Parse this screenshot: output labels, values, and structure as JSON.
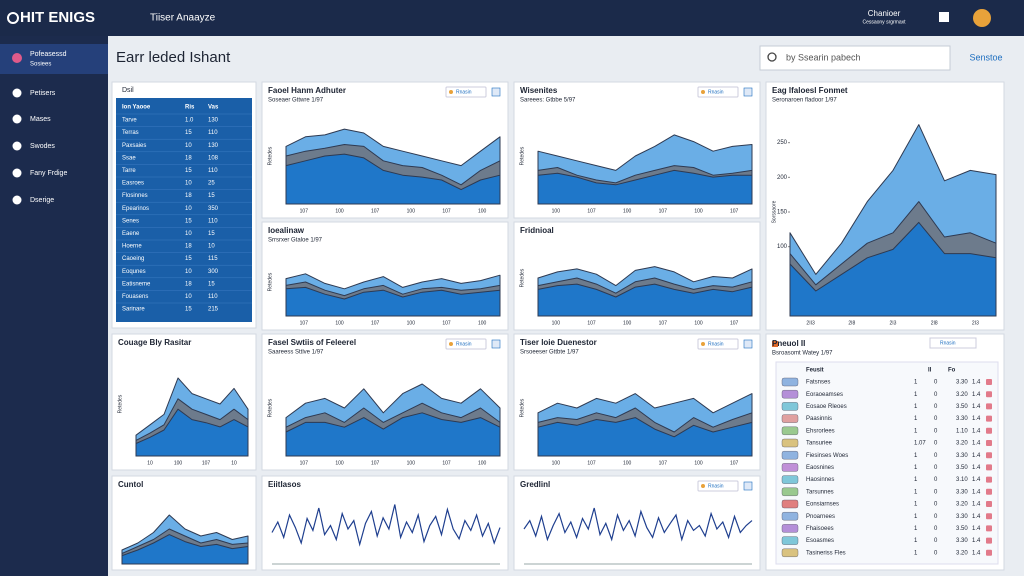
{
  "topbar": {
    "logo": "HIT ENIGS",
    "title": "Tiiser Anaayze",
    "user": "Chanioer",
    "user_sub": "Cessaony srgrmaxt"
  },
  "sidebar": {
    "active": "Pofeasessd",
    "active_sub": "Sosiees",
    "items": [
      "Petisers",
      "Mases",
      "Swodes",
      "Fany Frdige",
      "Dserige"
    ]
  },
  "header": {
    "title": "Earr leded Ishant",
    "search": "by Ssearin pabech",
    "button": "Senstoe"
  },
  "table": {
    "title": "Dsil",
    "columns": [
      "Ion Yaooe",
      "Ris",
      "Vas"
    ],
    "rows": [
      [
        "Tarve",
        "1.0",
        "130"
      ],
      [
        "Terras",
        "15",
        "110"
      ],
      [
        "Paxsaies",
        "10",
        "130"
      ],
      [
        "Ssae",
        "18",
        "108"
      ],
      [
        "Tarre",
        "15",
        "110"
      ],
      [
        "Easroes",
        "10",
        "25"
      ],
      [
        "Flosinnes",
        "18",
        "15"
      ],
      [
        "Epearinos",
        "10",
        "350"
      ],
      [
        "Senes",
        "15",
        "110"
      ],
      [
        "Eaene",
        "10",
        "15"
      ],
      [
        "Hoerne",
        "18",
        "10"
      ],
      [
        "Caoeing",
        "15",
        "115"
      ],
      [
        "Eoqunes",
        "10",
        "300"
      ],
      [
        "Eatisneme",
        "18",
        "15"
      ],
      [
        "Fouasens",
        "10",
        "110"
      ],
      [
        "Sarinare",
        "15",
        "215"
      ]
    ]
  },
  "charts": [
    {
      "type": "area",
      "title": "Faoel Hanm Adhuter",
      "subtitle": "Soseaer Gttwre 1/97",
      "badge": "Rnasin",
      "ylabel": "Retedes",
      "ylim": [
        0,
        100
      ],
      "xlabels": [
        "107",
        "100",
        "107",
        "100",
        "107",
        "100"
      ],
      "series": [
        {
          "color": "#6aaee6",
          "values": [
            60,
            70,
            72,
            78,
            74,
            60,
            55,
            50,
            45,
            40,
            55,
            70
          ]
        },
        {
          "color": "#6d7b8c",
          "values": [
            50,
            55,
            58,
            62,
            60,
            45,
            40,
            38,
            30,
            20,
            35,
            45
          ]
        },
        {
          "color": "#1f77c9",
          "values": [
            40,
            45,
            50,
            52,
            48,
            35,
            30,
            28,
            25,
            15,
            25,
            30
          ]
        }
      ]
    },
    {
      "type": "area",
      "title": "Wisenites",
      "subtitle": "Sareees: Gtbbe 5/97",
      "badge": "Rnasin",
      "ylabel": "Retedes",
      "ylim": [
        0,
        100
      ],
      "xlabels": [
        "100",
        "107",
        "100",
        "107",
        "100",
        "107"
      ],
      "series": [
        {
          "color": "#6aaee6",
          "values": [
            55,
            50,
            45,
            40,
            35,
            50,
            60,
            72,
            65,
            55,
            60,
            62
          ]
        },
        {
          "color": "#6d7b8c",
          "values": [
            35,
            38,
            30,
            25,
            22,
            30,
            35,
            40,
            38,
            30,
            32,
            35
          ]
        },
        {
          "color": "#1f77c9",
          "values": [
            30,
            32,
            28,
            22,
            20,
            25,
            30,
            35,
            32,
            28,
            30,
            30
          ]
        }
      ]
    },
    {
      "type": "area",
      "title": "Eag lfaloesl Fonmet",
      "subtitle": "Seronaroen fladoor 1/97",
      "ylabel": "Sorssaore",
      "ylim": [
        0,
        300
      ],
      "yticks": [
        100,
        150,
        200,
        250
      ],
      "xlabels": [
        "2II3",
        "2I8",
        "2I3",
        "2I8",
        "2I3"
      ],
      "series": [
        {
          "color": "#6aaee6",
          "values": [
            120,
            60,
            105,
            165,
            210,
            276,
            195,
            210,
            204
          ]
        },
        {
          "color": "#6d7b8c",
          "values": [
            90,
            45,
            75,
            105,
            120,
            165,
            114,
            120,
            105
          ]
        },
        {
          "color": "#1f77c9",
          "values": [
            75,
            36,
            60,
            84,
            96,
            135,
            90,
            90,
            84
          ]
        }
      ]
    },
    {
      "type": "area",
      "title": "Ioealinaw",
      "subtitle": "Srrsrxer Gtaloe 1/97",
      "ylabel": "Retedes",
      "ylim": [
        0,
        100
      ],
      "xlabels": [
        "107",
        "100",
        "107",
        "100",
        "107",
        "100"
      ],
      "series": [
        {
          "color": "#6aaee6",
          "values": [
            55,
            62,
            48,
            40,
            50,
            58,
            42,
            50,
            55,
            48,
            52,
            60
          ]
        },
        {
          "color": "#6d7b8c",
          "values": [
            45,
            50,
            38,
            30,
            40,
            45,
            32,
            40,
            42,
            38,
            40,
            45
          ]
        },
        {
          "color": "#1f77c9",
          "values": [
            40,
            42,
            32,
            25,
            35,
            38,
            28,
            35,
            38,
            32,
            35,
            38
          ]
        }
      ]
    },
    {
      "type": "area",
      "title": "Fridnioal",
      "ylabel": "Retedes",
      "ylim": [
        0,
        100
      ],
      "xlabels": [
        "100",
        "107",
        "100",
        "107",
        "100",
        "107"
      ],
      "series": [
        {
          "color": "#6aaee6",
          "values": [
            50,
            58,
            62,
            55,
            40,
            60,
            65,
            58,
            45,
            52,
            50,
            62
          ]
        },
        {
          "color": "#6d7b8c",
          "values": [
            40,
            45,
            50,
            42,
            30,
            45,
            50,
            42,
            35,
            40,
            38,
            45
          ]
        },
        {
          "color": "#1f77c9",
          "values": [
            35,
            40,
            42,
            35,
            25,
            38,
            42,
            35,
            30,
            35,
            32,
            38
          ]
        }
      ]
    },
    {
      "type": "area",
      "title": "Couage Bly Rasitar",
      "ylabel": "Retedes",
      "ylim": [
        0,
        100
      ],
      "xlabels": [
        "10",
        "100",
        "107",
        "10"
      ],
      "series": [
        {
          "color": "#6aaee6",
          "values": [
            20,
            30,
            40,
            75,
            60,
            55,
            50,
            65,
            45
          ]
        },
        {
          "color": "#6d7b8c",
          "values": [
            15,
            22,
            30,
            55,
            45,
            40,
            35,
            45,
            35
          ]
        },
        {
          "color": "#1f77c9",
          "values": [
            12,
            18,
            25,
            45,
            35,
            32,
            28,
            35,
            28
          ]
        }
      ]
    },
    {
      "type": "area",
      "title": "Fasel Swtiis of Feleerel",
      "subtitle": "Saareess Sttlve 1/97",
      "badge": "Rnasin",
      "ylabel": "Retedes",
      "ylim": [
        0,
        100
      ],
      "xlabels": [
        "107",
        "100",
        "107",
        "100",
        "107",
        "100"
      ],
      "series": [
        {
          "color": "#6aaee6",
          "values": [
            40,
            55,
            60,
            50,
            70,
            45,
            65,
            75,
            60,
            55,
            70,
            50
          ]
        },
        {
          "color": "#6d7b8c",
          "values": [
            30,
            40,
            45,
            35,
            50,
            35,
            45,
            55,
            45,
            40,
            50,
            35
          ]
        },
        {
          "color": "#1f77c9",
          "values": [
            25,
            35,
            35,
            30,
            40,
            28,
            40,
            45,
            38,
            35,
            40,
            30
          ]
        }
      ]
    },
    {
      "type": "area",
      "title": "Tiser loie Duenestor",
      "subtitle": "Srsoeeser Gttbte 1/97",
      "badge": "Rnasin",
      "ylabel": "Retedes",
      "ylim": [
        0,
        100
      ],
      "xlabels": [
        "100",
        "107",
        "100",
        "107",
        "100",
        "107"
      ],
      "series": [
        {
          "color": "#6aaee6",
          "values": [
            45,
            55,
            50,
            60,
            55,
            65,
            50,
            55,
            60,
            45,
            55,
            65
          ]
        },
        {
          "color": "#6d7b8c",
          "values": [
            35,
            40,
            38,
            45,
            40,
            50,
            35,
            25,
            40,
            30,
            38,
            45
          ]
        },
        {
          "color": "#1f77c9",
          "values": [
            30,
            35,
            32,
            38,
            35,
            40,
            28,
            20,
            32,
            25,
            30,
            35
          ]
        }
      ]
    },
    {
      "type": "area",
      "title": "Cuntol",
      "ylim": [
        0,
        100
      ],
      "series": [
        {
          "color": "#6aaee6",
          "values": [
            20,
            30,
            45,
            70,
            50,
            40,
            45,
            35,
            40
          ]
        },
        {
          "color": "#6d7b8c",
          "values": [
            15,
            25,
            35,
            50,
            40,
            30,
            35,
            28,
            30
          ]
        },
        {
          "color": "#1f77c9",
          "values": [
            12,
            20,
            30,
            42,
            32,
            25,
            28,
            22,
            25
          ]
        }
      ]
    },
    {
      "type": "line",
      "title": "Eiitlasos",
      "ylim": [
        0,
        100
      ],
      "series": [
        {
          "color": "#1f3f8f",
          "values": [
            45,
            60,
            38,
            70,
            52,
            30,
            65,
            48,
            80,
            42,
            55,
            35,
            72,
            50,
            62,
            28,
            58,
            75,
            40,
            66,
            50,
            85,
            38,
            60,
            45,
            70,
            32,
            55,
            68,
            42,
            78,
            50,
            36,
            62,
            48,
            70,
            40,
            58,
            30,
            52
          ]
        }
      ]
    },
    {
      "type": "line",
      "title": "Gredlinl",
      "badge": "Rnasin",
      "ylim": [
        0,
        100
      ],
      "series": [
        {
          "color": "#1f3f8f",
          "values": [
            50,
            62,
            40,
            68,
            35,
            55,
            72,
            45,
            60,
            38,
            65,
            50,
            80,
            42,
            58,
            35,
            70,
            48,
            62,
            40,
            75,
            52,
            38,
            66,
            45,
            58,
            70,
            35,
            62,
            48,
            55,
            40,
            72,
            50,
            60,
            38,
            68,
            45,
            55,
            62
          ]
        }
      ]
    }
  ],
  "list": {
    "title": "Pneuol II",
    "subtitle": "Bsroasomt Watey 1/97",
    "badge": "Rnasin",
    "columns": [
      "Feusit",
      "II",
      "Fo"
    ],
    "rows": [
      {
        "color": "#8fb3e0",
        "cells": [
          "Fatsnses",
          "1",
          "0",
          "3.30",
          "1.4"
        ]
      },
      {
        "color": "#b48fd8",
        "cells": [
          "Eoraoeamses",
          "1",
          "0",
          "3.20",
          "1.4"
        ]
      },
      {
        "color": "#7fc7d9",
        "cells": [
          "Eosaoe Rleoes",
          "1",
          "0",
          "3.50",
          "1.4"
        ]
      },
      {
        "color": "#e0a0a0",
        "cells": [
          "Paasinnis",
          "1",
          "0",
          "3.30",
          "1.4"
        ]
      },
      {
        "color": "#9ac98f",
        "cells": [
          "Ehsrorlees",
          "1",
          "0",
          "1.10",
          "1.4"
        ]
      },
      {
        "color": "#d9c27f",
        "cells": [
          "Tansuriee",
          "1.07",
          "0",
          "3.20",
          "1.4"
        ]
      },
      {
        "color": "#8fb3e0",
        "cells": [
          "Fiesinses Woes",
          "1",
          "0",
          "3.30",
          "1.4"
        ]
      },
      {
        "color": "#c08fd8",
        "cells": [
          "Eaosnines",
          "1",
          "0",
          "3.50",
          "1.4"
        ]
      },
      {
        "color": "#7fc7d9",
        "cells": [
          "Haosinnes",
          "1",
          "0",
          "3.10",
          "1.4"
        ]
      },
      {
        "color": "#9ac98f",
        "cells": [
          "Tarsunnes",
          "1",
          "0",
          "3.30",
          "1.4"
        ]
      },
      {
        "color": "#e07f7f",
        "cells": [
          "Eonsiarnses",
          "1",
          "0",
          "3.20",
          "1.4"
        ]
      },
      {
        "color": "#8fb3e0",
        "cells": [
          "Pnoarnees",
          "1",
          "0",
          "3.30",
          "1.4"
        ]
      },
      {
        "color": "#b48fd8",
        "cells": [
          "Fhaisoees",
          "1",
          "0",
          "3.50",
          "1.4"
        ]
      },
      {
        "color": "#7fc7d9",
        "cells": [
          "Esoasmes",
          "1",
          "0",
          "3.30",
          "1.4"
        ]
      },
      {
        "color": "#d9c27f",
        "cells": [
          "Tasineriss Fles",
          "1",
          "0",
          "3.20",
          "1.4"
        ]
      }
    ]
  }
}
